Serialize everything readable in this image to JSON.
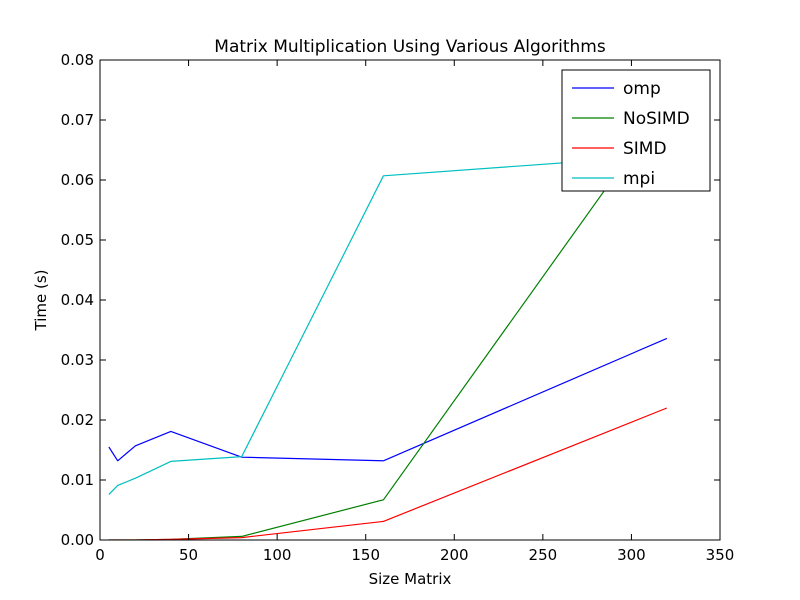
{
  "chart_data": {
    "type": "line",
    "title": "Matrix Multiplication Using Various Algorithms",
    "xlabel": "Size Matrix",
    "ylabel": "Time (s)",
    "xlim": [
      0,
      350
    ],
    "ylim": [
      0,
      0.08
    ],
    "xticks": [
      0,
      50,
      100,
      150,
      200,
      250,
      300,
      350
    ],
    "xtick_labels": [
      "0",
      "50",
      "100",
      "150",
      "200",
      "250",
      "300",
      "350"
    ],
    "yticks": [
      0,
      0.01,
      0.02,
      0.03,
      0.04,
      0.05,
      0.06,
      0.07,
      0.08
    ],
    "ytick_labels": [
      "0.00",
      "0.01",
      "0.02",
      "0.03",
      "0.04",
      "0.05",
      "0.06",
      "0.07",
      "0.08"
    ],
    "grid": false,
    "legend_position": "top-right",
    "series": [
      {
        "name": "omp",
        "color": "#0000ff",
        "x": [
          5,
          10,
          20,
          40,
          80,
          160,
          320
        ],
        "y": [
          0.0155,
          0.0132,
          0.0157,
          0.0181,
          0.0138,
          0.0132,
          0.0336
        ]
      },
      {
        "name": "NoSIMD",
        "color": "#008000",
        "x": [
          5,
          10,
          20,
          40,
          80,
          160,
          320
        ],
        "y": [
          0.0,
          0.0,
          0.0,
          0.0001,
          0.0006,
          0.0067,
          0.0728
        ]
      },
      {
        "name": "SIMD",
        "color": "#ff0000",
        "x": [
          5,
          10,
          20,
          40,
          80,
          160,
          320
        ],
        "y": [
          0.0,
          0.0,
          0.0,
          0.0001,
          0.0004,
          0.0031,
          0.022
        ]
      },
      {
        "name": "mpi",
        "color": "#00bfbf",
        "x": [
          5,
          10,
          20,
          40,
          80,
          160,
          320
        ],
        "y": [
          0.0076,
          0.0091,
          0.0103,
          0.0131,
          0.0139,
          0.0607,
          0.0641
        ]
      }
    ]
  }
}
